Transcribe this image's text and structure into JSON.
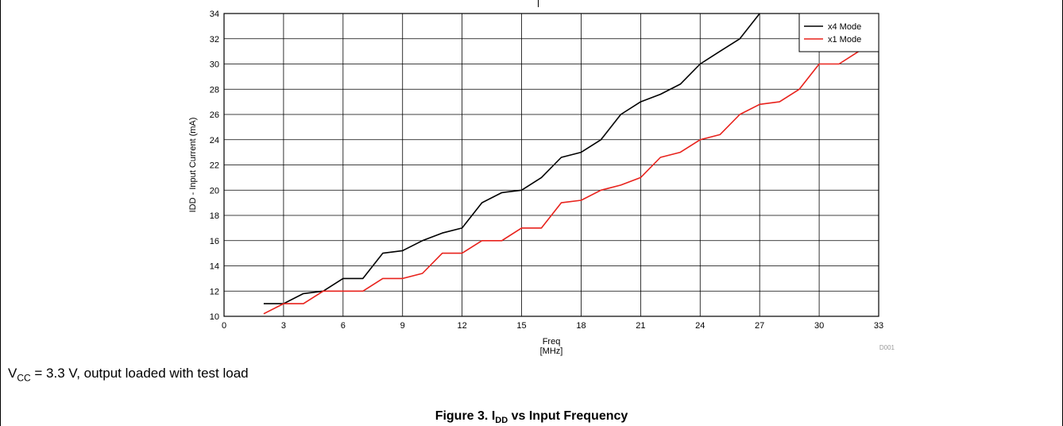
{
  "chart_data": {
    "type": "line",
    "title": "",
    "xlabel": "Freq",
    "xlabel_unit": "[MHz]",
    "ylabel": "IDD - Input Current  (mA)",
    "xlim": [
      0,
      33
    ],
    "ylim": [
      10,
      34
    ],
    "xticks": [
      0,
      3,
      6,
      9,
      12,
      15,
      18,
      21,
      24,
      27,
      30,
      33
    ],
    "yticks": [
      10,
      12,
      14,
      16,
      18,
      20,
      22,
      24,
      26,
      28,
      30,
      32,
      34
    ],
    "grid": true,
    "legend_position": "top-right",
    "watermark": "D001",
    "series": [
      {
        "name": "x4 Mode",
        "color": "#000000",
        "x": [
          2,
          3,
          4,
          5,
          6,
          7,
          8,
          9,
          10,
          11,
          12,
          13,
          14,
          15,
          16,
          17,
          18,
          19,
          20,
          21,
          22,
          23,
          24,
          25,
          26,
          27
        ],
        "y": [
          11,
          11,
          11.8,
          12,
          13,
          13,
          15,
          15.2,
          16,
          16.6,
          17,
          19,
          19.8,
          20,
          21,
          22.6,
          23,
          24,
          26,
          27,
          27.6,
          28.4,
          30,
          31,
          32,
          34
        ]
      },
      {
        "name": "x1 Mode",
        "color": "#e8221c",
        "x": [
          2,
          3,
          4,
          5,
          6,
          7,
          8,
          9,
          10,
          11,
          12,
          13,
          14,
          15,
          16,
          17,
          18,
          19,
          20,
          21,
          22,
          23,
          24,
          25,
          26,
          27,
          28,
          29,
          30,
          31,
          32
        ],
        "y": [
          10.2,
          11,
          11,
          12,
          12,
          12,
          13,
          13,
          13.4,
          15,
          15,
          16,
          16,
          17,
          17,
          19,
          19.2,
          20,
          20.4,
          21,
          22.6,
          23,
          24,
          24.4,
          26,
          26.8,
          27,
          28,
          30,
          30,
          31
        ]
      }
    ]
  },
  "caption": {
    "var": "V",
    "var_sub": "CC",
    "text": " = 3.3 V, output loaded with test load"
  },
  "figure": {
    "prefix": "Figure 3. I",
    "sub": "DD",
    "suffix": " vs Input Frequency"
  }
}
